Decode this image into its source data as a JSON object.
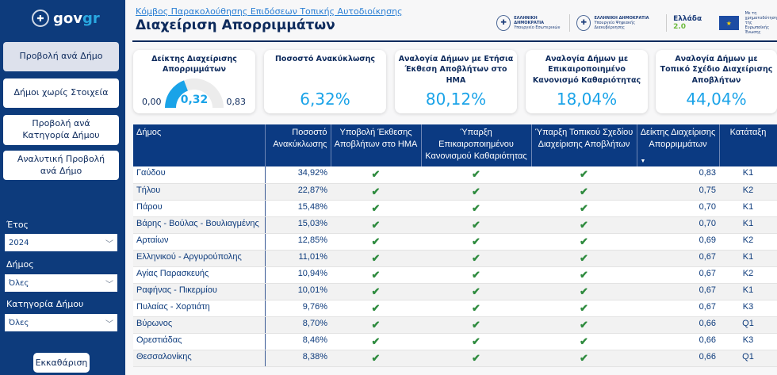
{
  "sidebar": {
    "logo": {
      "text_a": "gov",
      "text_b": "gr"
    },
    "nav": [
      {
        "label": "Προβολή ανά Δήμο",
        "active": true
      },
      {
        "label": "Δήμοι χωρίς Στοιχεία"
      },
      {
        "label": "Προβολή ανά Κατηγορία Δήμου"
      },
      {
        "label": "Αναλυτική Προβολή ανά Δήμο"
      }
    ],
    "filters": [
      {
        "label": "Έτος",
        "value": "2024"
      },
      {
        "label": "Δήμος",
        "value": "Όλες"
      },
      {
        "label": "Κατηγορία Δήμου",
        "value": "Όλες"
      }
    ],
    "clear_label": "Εκκαθάριση"
  },
  "header": {
    "link": "Κόμβος Παρακολούθησης Επιδόσεων Τοπικής Αυτοδιοίκησης",
    "title": "Διαχείριση Απορριμμάτων",
    "logos": [
      {
        "line1": "ΕΛΛΗΝΙΚΗ ΔΗΜΟΚΡΑΤΙΑ",
        "line2": "Υπουργείο Εσωτερικών"
      },
      {
        "line1": "ΕΛΛΗΝΙΚΗ ΔΗΜΟΚΡΑΤΙΑ",
        "line2": "Υπουργείο Ψηφιακής Διακυβέρνησης"
      }
    ],
    "ellada": "Ελλάδα",
    "ellada_ver": "2.0",
    "eu_text": "Με τη χρηματοδότηση της Ευρωπαϊκής Ένωσης"
  },
  "kpis": {
    "gauge": {
      "title": "Δείκτης Διαχείρισης Απορριμμάτων",
      "value": "0,32",
      "min": "0,00",
      "max": "0,83",
      "value_num": 0.32,
      "min_num": 0,
      "max_num": 0.83
    },
    "cards": [
      {
        "title": "Ποσοστό Ανακύκλωσης",
        "value": "6,32%"
      },
      {
        "title": "Αναλογία Δήμων με Ετήσια Έκθεση Αποβλήτων στο ΗΜΑ",
        "value": "80,12%"
      },
      {
        "title": "Αναλογία Δήμων με Επικαιροποιημένο Κανονισμό Καθαριότητας",
        "value": "18,04%"
      },
      {
        "title": "Αναλογία Δήμων με Τοπικό Σχέδιο Διαχείρισης Αποβλήτων",
        "value": "44,04%"
      }
    ]
  },
  "colors": {
    "sidebar": "#0d3b7c",
    "accent": "#1aa3e8",
    "check": "#2e8b3e",
    "header": "#0b3a82"
  },
  "table": {
    "columns": [
      "Δήμος",
      "Ποσοστό Ανακύκλωσης",
      "Υποβολή Έκθεσης Αποβλήτων στο ΗΜΑ",
      "Ύπαρξη Επικαιροποιημένου Κανονισμού Καθαριότητας",
      "Ύπαρξη Τοπικού Σχεδίου Διαχείρισης Αποβλήτων",
      "Δείκτης Διαχείρισης Απορριμμάτων",
      "Κατάταξη"
    ],
    "sorted_column": "Δείκτης Διαχείρισης Απορριμμάτων",
    "sort": "descending",
    "rows": [
      [
        "Γαύδου",
        "34,92%",
        true,
        true,
        true,
        "0,83",
        "K1"
      ],
      [
        "Τήλου",
        "22,87%",
        true,
        true,
        true,
        "0,75",
        "K2"
      ],
      [
        "Πάρου",
        "15,48%",
        true,
        true,
        true,
        "0,70",
        "K1"
      ],
      [
        "Βάρης - Βούλας - Βουλιαγμένης",
        "15,03%",
        true,
        true,
        true,
        "0,70",
        "K1"
      ],
      [
        "Αρταίων",
        "12,85%",
        true,
        true,
        true,
        "0,69",
        "K2"
      ],
      [
        "Ελληνικού - Αργυρούπολης",
        "11,01%",
        true,
        true,
        true,
        "0,67",
        "K1"
      ],
      [
        "Αγίας Παρασκευής",
        "10,94%",
        true,
        true,
        true,
        "0,67",
        "K2"
      ],
      [
        "Ραφήνας - Πικερμίου",
        "10,01%",
        true,
        true,
        true,
        "0,67",
        "K1"
      ],
      [
        "Πυλαίας - Χορτιάτη",
        "9,76%",
        true,
        true,
        true,
        "0,67",
        "K3"
      ],
      [
        "Βύρωνος",
        "8,70%",
        true,
        true,
        true,
        "0,66",
        "Q1"
      ],
      [
        "Ορεστιάδας",
        "8,46%",
        true,
        true,
        true,
        "0,66",
        "K3"
      ],
      [
        "Θεσσαλονίκης",
        "8,38%",
        true,
        true,
        true,
        "0,66",
        "Q1"
      ]
    ]
  }
}
